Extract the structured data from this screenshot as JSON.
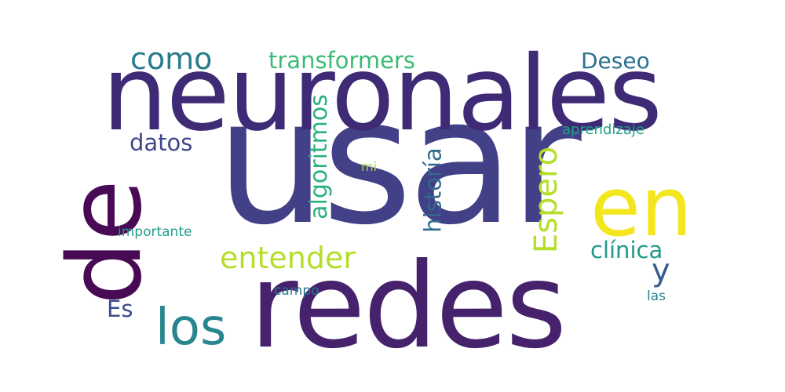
{
  "words": [
    {
      "id": "usar",
      "text": "usar",
      "color": "#424086",
      "orientation": "horizontal"
    },
    {
      "id": "neuronales",
      "text": "neuronales",
      "color": "#3e2a75",
      "orientation": "horizontal"
    },
    {
      "id": "redes",
      "text": "redes",
      "color": "#46226c",
      "orientation": "horizontal"
    },
    {
      "id": "de",
      "text": "de",
      "color": "#480a54",
      "orientation": "vertical"
    },
    {
      "id": "en",
      "text": "en",
      "color": "#f4e61e",
      "orientation": "horizontal"
    },
    {
      "id": "los",
      "text": "los",
      "color": "#28868e",
      "orientation": "horizontal"
    },
    {
      "id": "entender",
      "text": "entender",
      "color": "#b5de2b",
      "orientation": "horizontal"
    },
    {
      "id": "como",
      "text": "como",
      "color": "#297b8e",
      "orientation": "horizontal"
    },
    {
      "id": "transformers",
      "text": "transformers",
      "color": "#3bbb75",
      "orientation": "horizontal"
    },
    {
      "id": "deseo",
      "text": "Deseo",
      "color": "#2c718e",
      "orientation": "horizontal"
    },
    {
      "id": "algoritmos",
      "text": "algoritmos",
      "color": "#2ab07f",
      "orientation": "vertical"
    },
    {
      "id": "historia",
      "text": "historía",
      "color": "#306a8e",
      "orientation": "vertical"
    },
    {
      "id": "espero",
      "text": "Espero",
      "color": "#b5de2b",
      "orientation": "vertical"
    },
    {
      "id": "datos",
      "text": "datos",
      "color": "#3f4889",
      "orientation": "horizontal"
    },
    {
      "id": "clinica",
      "text": "clínica",
      "color": "#1f9a8a",
      "orientation": "horizontal"
    },
    {
      "id": "y",
      "text": "y",
      "color": "#355e8d",
      "orientation": "horizontal"
    },
    {
      "id": "es",
      "text": "Es",
      "color": "#3e4c8a",
      "orientation": "horizontal"
    },
    {
      "id": "aprendizaje",
      "text": "aprendizaje",
      "color": "#1fa187",
      "orientation": "horizontal"
    },
    {
      "id": "mi",
      "text": "mi",
      "color": "#a0da39",
      "orientation": "horizontal"
    },
    {
      "id": "importante",
      "text": "importante",
      "color": "#1f9e89",
      "orientation": "horizontal"
    },
    {
      "id": "campo",
      "text": "campo",
      "color": "#2a788e",
      "orientation": "horizontal"
    },
    {
      "id": "las",
      "text": "las",
      "color": "#25858e",
      "orientation": "horizontal"
    }
  ]
}
